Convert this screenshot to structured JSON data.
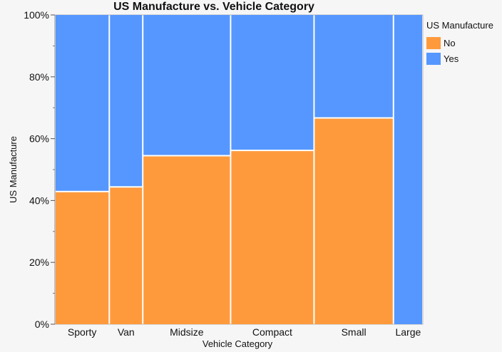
{
  "chart_data": {
    "type": "mosaic",
    "title": "US Manufacture vs. Vehicle Category",
    "xlabel": "Vehicle Category",
    "ylabel": "US Manufacture",
    "ylim": [
      0,
      100
    ],
    "yticks": [
      "0%",
      "20%",
      "40%",
      "60%",
      "80%",
      "100%"
    ],
    "categories": [
      "Sporty",
      "Van",
      "Midsize",
      "Compact",
      "Small",
      "Large"
    ],
    "category_share": [
      14.8,
      9.1,
      23.9,
      22.7,
      21.6,
      8.0
    ],
    "series": [
      {
        "name": "No",
        "color": "#ff9a3c",
        "values": [
          42.9,
          44.4,
          54.5,
          56.2,
          66.7,
          0
        ]
      },
      {
        "name": "Yes",
        "color": "#5597ff",
        "values": [
          57.1,
          55.6,
          45.5,
          43.8,
          33.3,
          100
        ]
      }
    ],
    "legend": {
      "title": "US Manufacture",
      "position": "right"
    },
    "grid": false
  }
}
